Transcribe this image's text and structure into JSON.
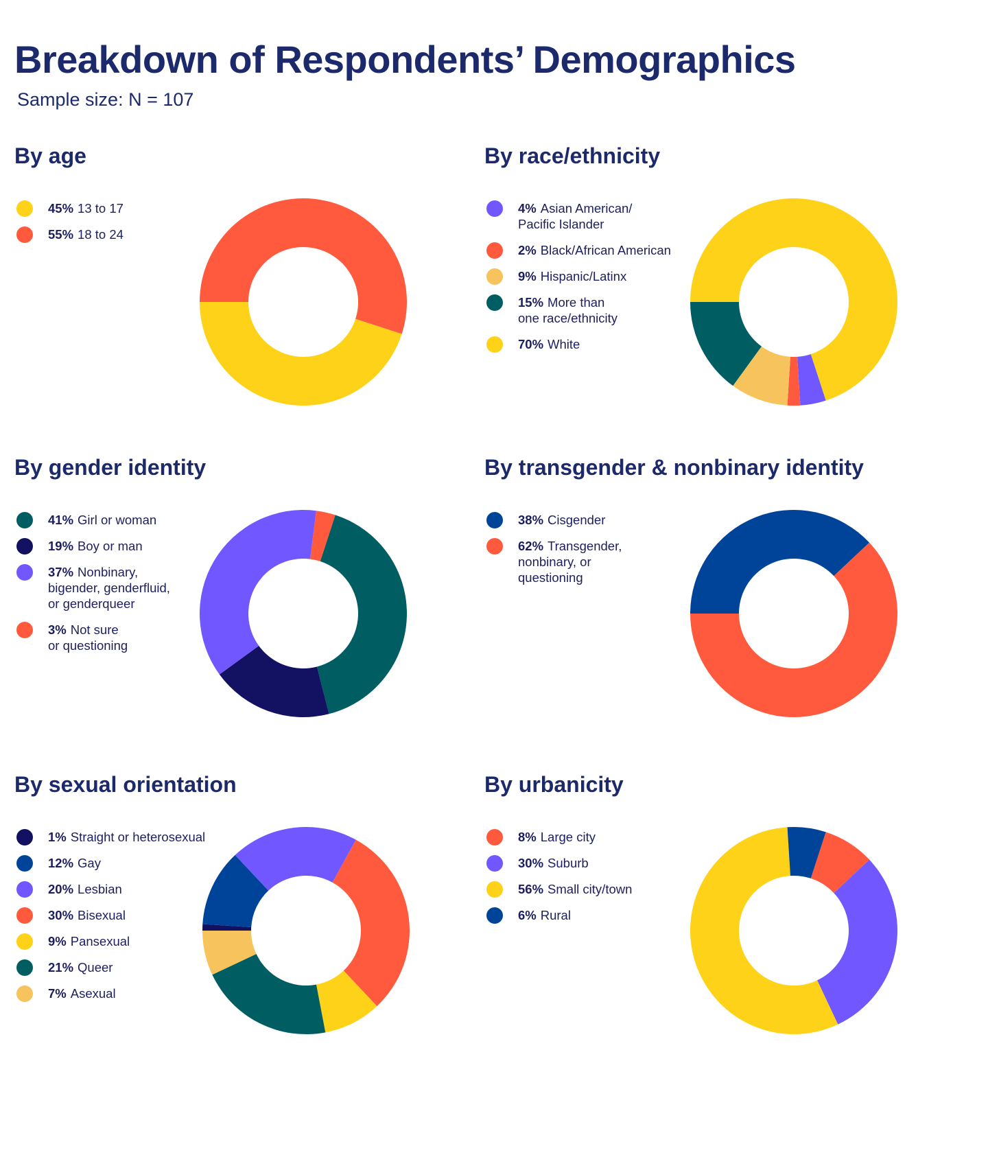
{
  "title": "Breakdown of Respondents’ Demographics",
  "subtitle": "Sample size: N = 107",
  "colors": {
    "yellow": "#FDD219",
    "red": "#FF5A3D",
    "purple": "#7157FF",
    "light_orange": "#F7C35C",
    "teal": "#005E63",
    "navy": "#131162",
    "blue": "#00449A"
  },
  "chart_data": [
    {
      "type": "pie",
      "donut": true,
      "title": "By age",
      "categories": [
        "13 to 17",
        "18 to 24"
      ],
      "percent_labels": [
        "45%",
        "55%"
      ],
      "values": [
        45,
        55
      ],
      "colors": [
        "#FDD219",
        "#FF5A3D"
      ]
    },
    {
      "type": "pie",
      "donut": true,
      "title": "By race/ethnicity",
      "categories": [
        "Asian American/\nPacific Islander",
        "Black/African American",
        "Hispanic/Latinx",
        "More than\none race/ethnicity",
        "White"
      ],
      "percent_labels": [
        "4%",
        "2%",
        "9%",
        "15%",
        "70%"
      ],
      "values": [
        4,
        2,
        9,
        15,
        70
      ],
      "colors": [
        "#7157FF",
        "#FF5A3D",
        "#F7C35C",
        "#005E63",
        "#FDD219"
      ]
    },
    {
      "type": "pie",
      "donut": true,
      "title": "By gender identity",
      "categories": [
        "Girl or woman",
        "Boy or man",
        "Nonbinary,\nbigender, genderfluid,\nor genderqueer",
        "Not sure\nor questioning"
      ],
      "percent_labels": [
        "41%",
        "19%",
        "37%",
        "3%"
      ],
      "values": [
        41,
        19,
        37,
        3
      ],
      "colors": [
        "#005E63",
        "#131162",
        "#7157FF",
        "#FF5A3D"
      ]
    },
    {
      "type": "pie",
      "donut": true,
      "title": "By transgender & nonbinary identity",
      "categories": [
        "Cisgender",
        "Transgender,\nnonbinary, or\nquestioning"
      ],
      "percent_labels": [
        "38%",
        "62%"
      ],
      "values": [
        38,
        62
      ],
      "colors": [
        "#00449A",
        "#FF5A3D"
      ]
    },
    {
      "type": "pie",
      "donut": true,
      "title": "By sexual orientation",
      "categories": [
        "Straight or heterosexual",
        "Gay",
        "Lesbian",
        "Bisexual",
        "Pansexual",
        "Queer",
        "Asexual"
      ],
      "percent_labels": [
        "1%",
        "12%",
        "20%",
        "30%",
        "9%",
        "21%",
        "7%"
      ],
      "values": [
        1,
        12,
        20,
        30,
        9,
        21,
        7
      ],
      "colors": [
        "#131162",
        "#00449A",
        "#7157FF",
        "#FF5A3D",
        "#FDD219",
        "#005E63",
        "#F7C35C"
      ]
    },
    {
      "type": "pie",
      "donut": true,
      "title": "By urbanicity",
      "categories": [
        "Large city",
        "Suburb",
        "Small city/town",
        "Rural"
      ],
      "percent_labels": [
        "8%",
        "30%",
        "56%",
        "6%"
      ],
      "values": [
        8,
        30,
        56,
        6
      ],
      "colors": [
        "#FF5A3D",
        "#7157FF",
        "#FDD219",
        "#00449A"
      ]
    }
  ]
}
